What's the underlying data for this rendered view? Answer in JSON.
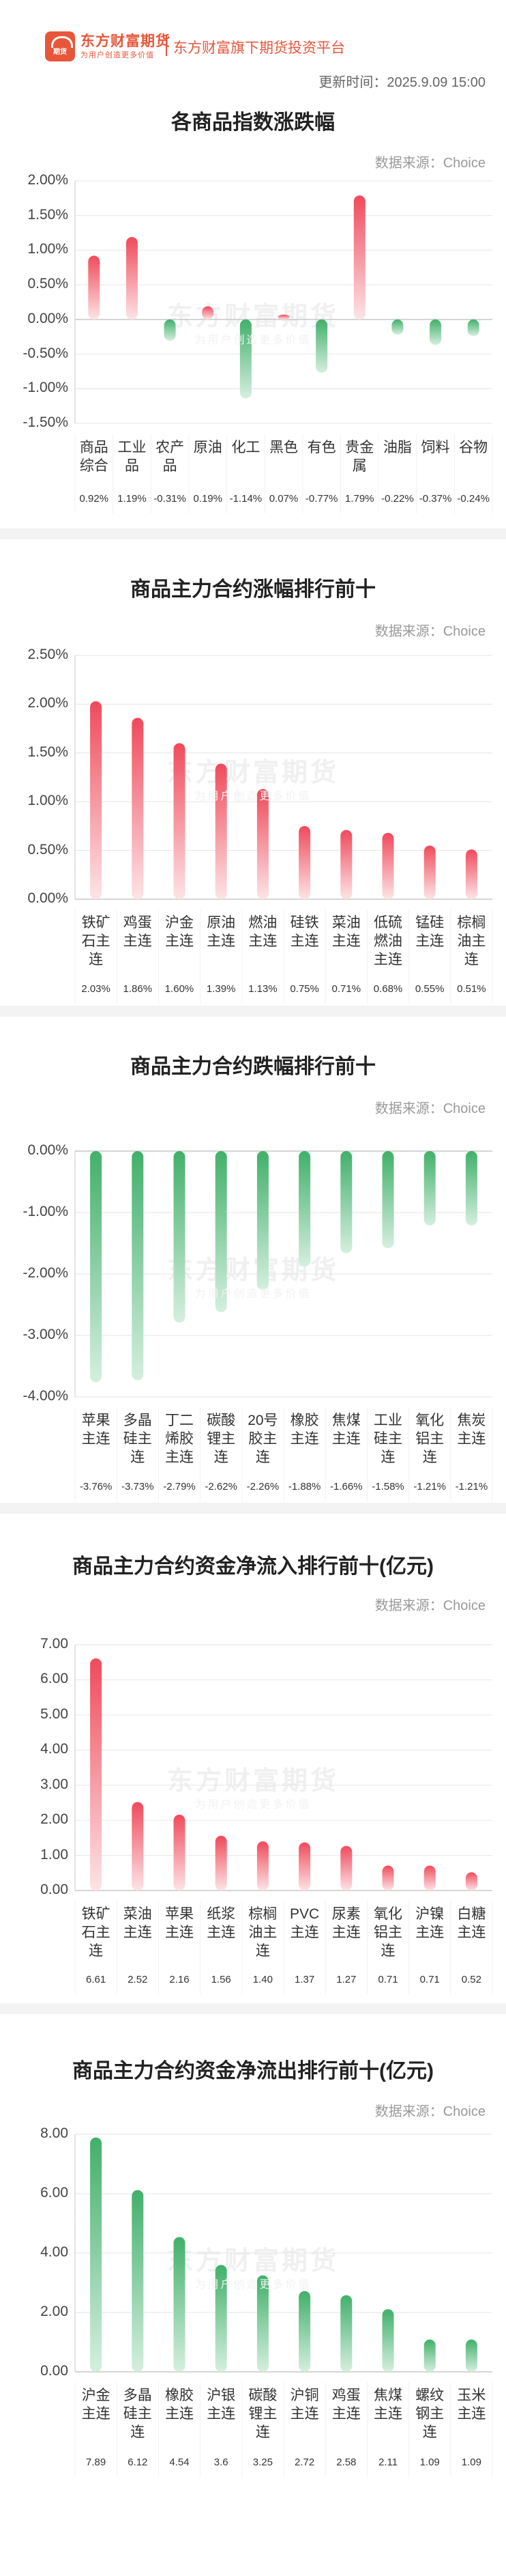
{
  "header": {
    "brand_name": "东方财富期货",
    "brand_slogan": "为用户创造更多价值",
    "logo_text": "期货",
    "tagline": "东方财富旗下期货投资平台",
    "update_time": "更新时间：2025.9.09 15:00"
  },
  "watermark": {
    "text": "东方财富期货",
    "sub": "为用户创造更多价值"
  },
  "colors": {
    "up_top": "#f04a5b",
    "up_bottom": "#fde4e6",
    "down_top": "#41b06a",
    "down_bottom": "#d5efdf",
    "grid": "#e6e6e6",
    "axis": "#c8c8c8"
  },
  "chart_data": [
    {
      "type": "bar",
      "title": "各商品指数涨跌幅",
      "source": "数据来源：Choice",
      "categories": [
        "商品综合",
        "工业品",
        "农产品",
        "原油",
        "化工",
        "黑色",
        "有色",
        "贵金属",
        "油脂",
        "饲料",
        "谷物"
      ],
      "values": [
        0.92,
        1.19,
        -0.31,
        0.19,
        -1.14,
        0.07,
        -0.77,
        1.79,
        -0.22,
        -0.37,
        -0.24
      ],
      "value_labels": [
        "0.92%",
        "1.19%",
        "-0.31%",
        "0.19%",
        "-1.14%",
        "0.07%",
        "-0.77%",
        "1.79%",
        "-0.22%",
        "-0.37%",
        "-0.24%"
      ],
      "yticks": [
        "2.00%",
        "1.50%",
        "1.00%",
        "0.50%",
        "0.00%",
        "-0.50%",
        "-1.00%",
        "-1.50%"
      ],
      "ylim": [
        -1.5,
        2.0
      ],
      "unit": "%",
      "grid": true
    },
    {
      "type": "bar",
      "title": "商品主力合约涨幅排行前十",
      "source": "数据来源：Choice",
      "categories": [
        "铁矿石主连",
        "鸡蛋主连",
        "沪金主连",
        "原油主连",
        "燃油主连",
        "硅铁主连",
        "菜油主连",
        "低硫燃油主连",
        "锰硅主连",
        "棕榈油主连"
      ],
      "values": [
        2.03,
        1.86,
        1.6,
        1.39,
        1.13,
        0.75,
        0.71,
        0.68,
        0.55,
        0.51
      ],
      "value_labels": [
        "2.03%",
        "1.86%",
        "1.60%",
        "1.39%",
        "1.13%",
        "0.75%",
        "0.71%",
        "0.68%",
        "0.55%",
        "0.51%"
      ],
      "yticks": [
        "2.50%",
        "2.00%",
        "1.50%",
        "1.00%",
        "0.50%",
        "0.00%"
      ],
      "ylim": [
        0,
        2.5
      ],
      "unit": "%",
      "grid": true
    },
    {
      "type": "bar",
      "title": "商品主力合约跌幅排行前十",
      "source": "数据来源：Choice",
      "categories": [
        "苹果主连",
        "多晶硅主连",
        "丁二烯胶主连",
        "碳酸锂主连",
        "20号胶主连",
        "橡胶主连",
        "焦煤主连",
        "工业硅主连",
        "氧化铝主连",
        "焦炭主连"
      ],
      "values": [
        -3.76,
        -3.73,
        -2.79,
        -2.62,
        -2.26,
        -1.88,
        -1.66,
        -1.58,
        -1.21,
        -1.21
      ],
      "value_labels": [
        "-3.76%",
        "-3.73%",
        "-2.79%",
        "-2.62%",
        "-2.26%",
        "-1.88%",
        "-1.66%",
        "-1.58%",
        "-1.21%",
        "-1.21%"
      ],
      "yticks": [
        "0.00%",
        "-1.00%",
        "-2.00%",
        "-3.00%",
        "-4.00%"
      ],
      "ylim": [
        -4.0,
        0
      ],
      "unit": "%",
      "grid": true
    },
    {
      "type": "bar",
      "title": "商品主力合约资金净流入排行前十(亿元)",
      "source": "数据来源：Choice",
      "categories": [
        "铁矿石主连",
        "菜油主连",
        "苹果主连",
        "纸浆主连",
        "棕榈油主连",
        "PVC主连",
        "尿素主连",
        "氧化铝主连",
        "沪镍主连",
        "白糖主连"
      ],
      "values": [
        6.61,
        2.52,
        2.16,
        1.56,
        1.4,
        1.37,
        1.27,
        0.71,
        0.71,
        0.52
      ],
      "value_labels": [
        "6.61",
        "2.52",
        "2.16",
        "1.56",
        "1.40",
        "1.37",
        "1.27",
        "0.71",
        "0.71",
        "0.52"
      ],
      "yticks": [
        "7.00",
        "6.00",
        "5.00",
        "4.00",
        "3.00",
        "2.00",
        "1.00",
        "0.00"
      ],
      "ylim": [
        0,
        7.0
      ],
      "unit": "亿元",
      "grid": true
    },
    {
      "type": "bar",
      "title": "商品主力合约资金净流出排行前十(亿元)",
      "source": "数据来源：Choice",
      "categories": [
        "沪金主连",
        "多晶硅主连",
        "橡胶主连",
        "沪银主连",
        "碳酸锂主连",
        "沪铜主连",
        "鸡蛋主连",
        "焦煤主连",
        "螺纹钢主连",
        "玉米主连"
      ],
      "values": [
        7.89,
        6.12,
        4.54,
        3.6,
        3.25,
        2.72,
        2.58,
        2.11,
        1.09,
        1.09
      ],
      "value_labels": [
        "7.89",
        "6.12",
        "4.54",
        "3.6",
        "3.25",
        "2.72",
        "2.58",
        "2.11",
        "1.09",
        "1.09"
      ],
      "yticks": [
        "8.00",
        "6.00",
        "4.00",
        "2.00",
        "0.00"
      ],
      "ylim": [
        0,
        8.0
      ],
      "unit": "亿元",
      "grid": true
    }
  ]
}
